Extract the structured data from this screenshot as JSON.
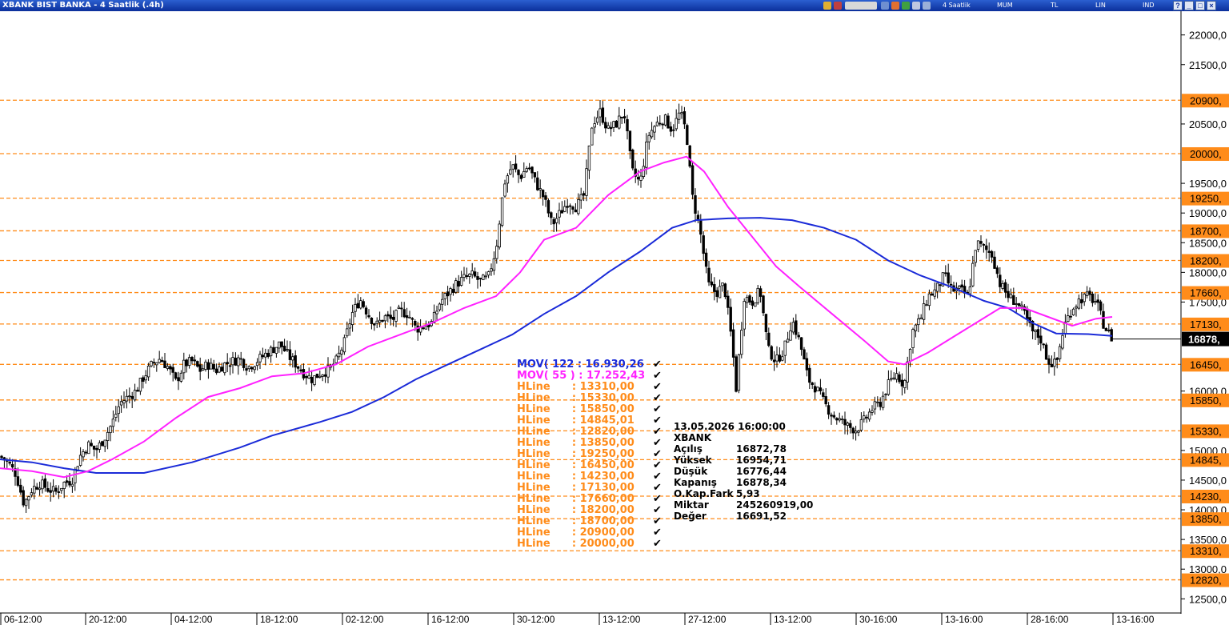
{
  "window": {
    "title": "XBANK BIST BANKA - 4 Saatlik (.4h)",
    "toolbar": [
      "4 Saatlik",
      "MUM",
      "TL",
      "LIN",
      "IND"
    ]
  },
  "colors": {
    "title_bar": "#0b2f9a",
    "mov122": "#1b2bd8",
    "mov55": "#ff22ff",
    "hline": "#ff8c1a",
    "candle": "#000000"
  },
  "legend": {
    "items": [
      {
        "label": "MOV( 122 : 16.930,26",
        "color": "#1b2bd8"
      },
      {
        "label": "MOV( 55 ) : 17.252,43",
        "color": "#ff22ff"
      },
      {
        "label": "HLine      : 13310,00",
        "color": "#ff8c1a"
      },
      {
        "label": "HLine      : 15330,00",
        "color": "#ff8c1a"
      },
      {
        "label": "HLine      : 15850,00",
        "color": "#ff8c1a"
      },
      {
        "label": "HLine      : 14845,01",
        "color": "#ff8c1a"
      },
      {
        "label": "HLine      : 12820,00",
        "color": "#ff8c1a"
      },
      {
        "label": "HLine      : 13850,00",
        "color": "#ff8c1a"
      },
      {
        "label": "HLine      : 19250,00",
        "color": "#ff8c1a"
      },
      {
        "label": "HLine      : 16450,00",
        "color": "#ff8c1a"
      },
      {
        "label": "HLine      : 14230,00",
        "color": "#ff8c1a"
      },
      {
        "label": "HLine      : 17130,00",
        "color": "#ff8c1a"
      },
      {
        "label": "HLine      : 17660,00",
        "color": "#ff8c1a"
      },
      {
        "label": "HLine      : 18200,00",
        "color": "#ff8c1a"
      },
      {
        "label": "HLine      : 18700,00",
        "color": "#ff8c1a"
      },
      {
        "label": "HLine      : 20900,00",
        "color": "#ff8c1a"
      },
      {
        "label": "HLine      : 20000,00",
        "color": "#ff8c1a"
      }
    ],
    "check": "✔"
  },
  "info_box": {
    "datetime": "13.05.2026  16:00:00",
    "symbol": "XBANK",
    "rows": [
      {
        "label": "Açılış",
        "value": "16872,78"
      },
      {
        "label": "Yüksek",
        "value": "16954,71"
      },
      {
        "label": "Düşük",
        "value": "16776,44"
      },
      {
        "label": "Kapanış",
        "value": "16878,34"
      },
      {
        "label": "O.Kap.Fark",
        "value": "5,93"
      },
      {
        "label": "Miktar",
        "value": "245260919,00"
      },
      {
        "label": "Değer",
        "value": "16691,52"
      }
    ]
  },
  "chart_data": {
    "type": "candlestick",
    "symbol": "XBANK",
    "interval": "4 Saatlik",
    "ylim": [
      12450,
      22400
    ],
    "grid": false,
    "y_ticks": [
      "22000,0",
      "21500,0",
      "20500,0",
      "19500,0",
      "19000,0",
      "18500,0",
      "18000,0",
      "17500,0",
      "16000,0",
      "15000,0",
      "14500,0",
      "14000,0",
      "13500,0",
      "13000,0",
      "12500,0"
    ],
    "y_tick_values": [
      22000,
      21500,
      20500,
      19500,
      19000,
      18500,
      18000,
      17500,
      16000,
      15000,
      14500,
      14000,
      13500,
      13000,
      12500
    ],
    "x_labels": [
      "06-12:00",
      "20-12:00",
      "04-12:00",
      "18-12:00",
      "02-12:00",
      "16-12:00",
      "30-12:00",
      "13-12:00",
      "27-12:00",
      "13-12:00",
      "30-16:00",
      "13-16:00",
      "28-16:00",
      "13-16:00"
    ],
    "hlines": [
      {
        "value": 20900,
        "label": "20900,"
      },
      {
        "value": 20000,
        "label": "20000,"
      },
      {
        "value": 19250,
        "label": "19250,"
      },
      {
        "value": 18700,
        "label": "18700,"
      },
      {
        "value": 18200,
        "label": "18200,"
      },
      {
        "value": 17660,
        "label": "17660,"
      },
      {
        "value": 17130,
        "label": "17130,"
      },
      {
        "value": 16450,
        "label": "16450,"
      },
      {
        "value": 15850,
        "label": "15850,"
      },
      {
        "value": 15330,
        "label": "15330,"
      },
      {
        "value": 14845,
        "label": "14845,"
      },
      {
        "value": 14230,
        "label": "14230,"
      },
      {
        "value": 13850,
        "label": "13850,"
      },
      {
        "value": 13310,
        "label": "13310,"
      },
      {
        "value": 12820,
        "label": "12820,"
      }
    ],
    "last_price": {
      "value": 16878,
      "label": "16878,"
    },
    "close_path": [
      [
        0,
        14900
      ],
      [
        10,
        14800
      ],
      [
        20,
        14600
      ],
      [
        30,
        14100
      ],
      [
        40,
        14350
      ],
      [
        50,
        14450
      ],
      [
        60,
        14350
      ],
      [
        70,
        14300
      ],
      [
        80,
        14450
      ],
      [
        90,
        14500
      ],
      [
        100,
        14900
      ],
      [
        110,
        15100
      ],
      [
        120,
        15000
      ],
      [
        130,
        15200
      ],
      [
        140,
        15450
      ],
      [
        150,
        15800
      ],
      [
        160,
        15900
      ],
      [
        170,
        16000
      ],
      [
        180,
        16250
      ],
      [
        190,
        16450
      ],
      [
        200,
        16550
      ],
      [
        210,
        16400
      ],
      [
        220,
        16150
      ],
      [
        230,
        16450
      ],
      [
        240,
        16500
      ],
      [
        250,
        16350
      ],
      [
        260,
        16450
      ],
      [
        270,
        16350
      ],
      [
        280,
        16450
      ],
      [
        290,
        16500
      ],
      [
        300,
        16550
      ],
      [
        310,
        16400
      ],
      [
        320,
        16500
      ],
      [
        330,
        16600
      ],
      [
        340,
        16700
      ],
      [
        350,
        16800
      ],
      [
        360,
        16600
      ],
      [
        370,
        16450
      ],
      [
        380,
        16300
      ],
      [
        390,
        16200
      ],
      [
        400,
        16300
      ],
      [
        410,
        16350
      ],
      [
        420,
        16500
      ],
      [
        430,
        16800
      ],
      [
        440,
        17300
      ],
      [
        450,
        17550
      ],
      [
        460,
        17300
      ],
      [
        470,
        17100
      ],
      [
        480,
        17250
      ],
      [
        490,
        17200
      ],
      [
        500,
        17350
      ],
      [
        510,
        17300
      ],
      [
        520,
        17050
      ],
      [
        530,
        17100
      ],
      [
        540,
        17150
      ],
      [
        550,
        17500
      ],
      [
        560,
        17650
      ],
      [
        570,
        17800
      ],
      [
        580,
        17900
      ],
      [
        590,
        17950
      ],
      [
        600,
        17850
      ],
      [
        610,
        17900
      ],
      [
        620,
        18400
      ],
      [
        630,
        19500
      ],
      [
        640,
        19800
      ],
      [
        650,
        19600
      ],
      [
        660,
        19800
      ],
      [
        670,
        19500
      ],
      [
        680,
        19250
      ],
      [
        690,
        18800
      ],
      [
        700,
        19000
      ],
      [
        710,
        19200
      ],
      [
        720,
        19100
      ],
      [
        730,
        19300
      ],
      [
        740,
        20500
      ],
      [
        750,
        20700
      ],
      [
        760,
        20400
      ],
      [
        770,
        20500
      ],
      [
        780,
        20700
      ],
      [
        790,
        19700
      ],
      [
        800,
        19500
      ],
      [
        810,
        20300
      ],
      [
        820,
        20500
      ],
      [
        830,
        20600
      ],
      [
        840,
        20400
      ],
      [
        850,
        20700
      ],
      [
        858,
        20350
      ],
      [
        865,
        19300
      ],
      [
        875,
        18700
      ],
      [
        885,
        17800
      ],
      [
        895,
        17650
      ],
      [
        905,
        17800
      ],
      [
        915,
        16800
      ],
      [
        920,
        16050
      ],
      [
        930,
        17600
      ],
      [
        940,
        17500
      ],
      [
        950,
        17700
      ],
      [
        960,
        16700
      ],
      [
        970,
        16500
      ],
      [
        980,
        16700
      ],
      [
        990,
        17200
      ],
      [
        1000,
        16800
      ],
      [
        1010,
        16200
      ],
      [
        1020,
        16050
      ],
      [
        1030,
        15800
      ],
      [
        1040,
        15600
      ],
      [
        1050,
        15500
      ],
      [
        1060,
        15400
      ],
      [
        1070,
        15350
      ],
      [
        1080,
        15500
      ],
      [
        1090,
        15700
      ],
      [
        1100,
        15800
      ],
      [
        1110,
        16100
      ],
      [
        1120,
        16300
      ],
      [
        1130,
        16100
      ],
      [
        1140,
        17000
      ],
      [
        1150,
        17200
      ],
      [
        1160,
        17600
      ],
      [
        1170,
        17700
      ],
      [
        1180,
        17950
      ],
      [
        1190,
        17700
      ],
      [
        1200,
        17700
      ],
      [
        1210,
        17600
      ],
      [
        1220,
        18500
      ],
      [
        1230,
        18400
      ],
      [
        1240,
        18300
      ],
      [
        1250,
        17800
      ],
      [
        1260,
        17600
      ],
      [
        1270,
        17500
      ],
      [
        1280,
        17300
      ],
      [
        1290,
        17000
      ],
      [
        1300,
        16900
      ],
      [
        1310,
        16500
      ],
      [
        1320,
        16450
      ],
      [
        1330,
        17100
      ],
      [
        1340,
        17400
      ],
      [
        1350,
        17550
      ],
      [
        1360,
        17600
      ],
      [
        1370,
        17500
      ],
      [
        1380,
        17100
      ],
      [
        1390,
        16878
      ]
    ],
    "series": [
      {
        "name": "MOV( 122",
        "last": 16930.26,
        "points": [
          [
            0,
            14850
          ],
          [
            40,
            14800
          ],
          [
            80,
            14700
          ],
          [
            120,
            14620
          ],
          [
            180,
            14620
          ],
          [
            240,
            14800
          ],
          [
            300,
            15050
          ],
          [
            340,
            15250
          ],
          [
            400,
            15480
          ],
          [
            440,
            15650
          ],
          [
            480,
            15900
          ],
          [
            520,
            16200
          ],
          [
            560,
            16450
          ],
          [
            600,
            16700
          ],
          [
            640,
            16950
          ],
          [
            680,
            17300
          ],
          [
            720,
            17600
          ],
          [
            760,
            18000
          ],
          [
            800,
            18350
          ],
          [
            840,
            18750
          ],
          [
            870,
            18880
          ],
          [
            910,
            18910
          ],
          [
            950,
            18920
          ],
          [
            990,
            18880
          ],
          [
            1030,
            18750
          ],
          [
            1070,
            18550
          ],
          [
            1110,
            18200
          ],
          [
            1150,
            17950
          ],
          [
            1190,
            17750
          ],
          [
            1230,
            17520
          ],
          [
            1260,
            17400
          ],
          [
            1290,
            17150
          ],
          [
            1320,
            16970
          ],
          [
            1360,
            16960
          ],
          [
            1390,
            16930
          ]
        ]
      },
      {
        "name": "MOV( 55 )",
        "last": 17252.43,
        "points": [
          [
            0,
            14700
          ],
          [
            40,
            14650
          ],
          [
            80,
            14550
          ],
          [
            110,
            14650
          ],
          [
            140,
            14850
          ],
          [
            180,
            15150
          ],
          [
            220,
            15550
          ],
          [
            260,
            15900
          ],
          [
            300,
            16050
          ],
          [
            340,
            16250
          ],
          [
            380,
            16300
          ],
          [
            420,
            16450
          ],
          [
            460,
            16750
          ],
          [
            500,
            16950
          ],
          [
            540,
            17150
          ],
          [
            580,
            17400
          ],
          [
            620,
            17600
          ],
          [
            650,
            18000
          ],
          [
            680,
            18550
          ],
          [
            720,
            18750
          ],
          [
            760,
            19300
          ],
          [
            800,
            19700
          ],
          [
            830,
            19850
          ],
          [
            858,
            19950
          ],
          [
            880,
            19700
          ],
          [
            910,
            19100
          ],
          [
            940,
            18600
          ],
          [
            970,
            18100
          ],
          [
            1000,
            17750
          ],
          [
            1040,
            17300
          ],
          [
            1080,
            16850
          ],
          [
            1110,
            16500
          ],
          [
            1130,
            16450
          ],
          [
            1160,
            16650
          ],
          [
            1190,
            16900
          ],
          [
            1220,
            17150
          ],
          [
            1250,
            17400
          ],
          [
            1280,
            17400
          ],
          [
            1310,
            17250
          ],
          [
            1340,
            17100
          ],
          [
            1370,
            17220
          ],
          [
            1390,
            17250
          ]
        ]
      }
    ]
  }
}
